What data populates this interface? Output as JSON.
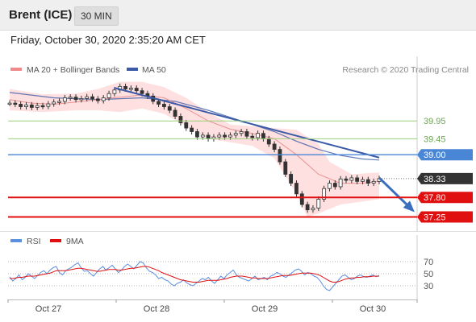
{
  "header": {
    "title": "Brent (ICE)",
    "timeframe": "30 MIN",
    "datetime": "Friday, October 30, 2020 2:35:20 AM CET"
  },
  "colors": {
    "price": "#333333",
    "ma20": "#e88a8a",
    "bollinger_fill": "#fdd6d6",
    "ma50": "#3a5aa8",
    "resistance_green": "#9bcf7e",
    "level_blue": "#4a86d6",
    "support_red": "#e01010",
    "current_price_box": "#333333",
    "rsi": "#5b8fe0",
    "rsi_ma": "#e01010"
  },
  "chart_data": [
    {
      "type": "line",
      "title": "Brent (ICE)",
      "legend": [
        {
          "name": "MA 20 + Bollinger Bands",
          "color": "#f08a8a"
        },
        {
          "name": "MA 50",
          "color": "#3a5aa8"
        }
      ],
      "legend_placement": "top-left",
      "source": "Research © 2020 Trading Central",
      "x_tick_labels": [
        "Oct 27",
        "Oct 28",
        "Oct 29",
        "Oct 30"
      ],
      "ylim": [
        36.9,
        41.2
      ],
      "price_path": [
        [
          0,
          40.45
        ],
        [
          1,
          40.42
        ],
        [
          2,
          40.35
        ],
        [
          3,
          40.4
        ],
        [
          4,
          40.33
        ],
        [
          5,
          40.38
        ],
        [
          6,
          40.36
        ],
        [
          7,
          40.43
        ],
        [
          8,
          40.48
        ],
        [
          9,
          40.5
        ],
        [
          10,
          40.6
        ],
        [
          11,
          40.62
        ],
        [
          12,
          40.55
        ],
        [
          13,
          40.58
        ],
        [
          14,
          40.63
        ],
        [
          15,
          40.57
        ],
        [
          16,
          40.52
        ],
        [
          17,
          40.6
        ],
        [
          18,
          40.72
        ],
        [
          19,
          40.82
        ],
        [
          20,
          40.92
        ],
        [
          21,
          40.85
        ],
        [
          22,
          40.87
        ],
        [
          23,
          40.8
        ],
        [
          24,
          40.72
        ],
        [
          25,
          40.65
        ],
        [
          26,
          40.5
        ],
        [
          27,
          40.42
        ],
        [
          28,
          40.35
        ],
        [
          29,
          40.25
        ],
        [
          30,
          40.08
        ],
        [
          31,
          39.9
        ],
        [
          32,
          39.75
        ],
        [
          33,
          39.65
        ],
        [
          34,
          39.5
        ],
        [
          35,
          39.55
        ],
        [
          36,
          39.45
        ],
        [
          37,
          39.5
        ],
        [
          38,
          39.55
        ],
        [
          39,
          39.5
        ],
        [
          40,
          39.55
        ],
        [
          41,
          39.6
        ],
        [
          42,
          39.65
        ],
        [
          43,
          39.52
        ],
        [
          44,
          39.48
        ],
        [
          45,
          39.6
        ],
        [
          46,
          39.45
        ],
        [
          47,
          39.3
        ],
        [
          48,
          39.15
        ],
        [
          49,
          38.8
        ],
        [
          50,
          38.45
        ],
        [
          51,
          38.2
        ],
        [
          52,
          37.9
        ],
        [
          53,
          37.6
        ],
        [
          54,
          37.45
        ],
        [
          55,
          37.5
        ],
        [
          56,
          37.75
        ],
        [
          57,
          38.05
        ],
        [
          58,
          38.2
        ],
        [
          59,
          38.1
        ],
        [
          60,
          38.32
        ],
        [
          61,
          38.28
        ],
        [
          62,
          38.35
        ],
        [
          63,
          38.25
        ],
        [
          64,
          38.3
        ],
        [
          65,
          38.2
        ],
        [
          66,
          38.25
        ],
        [
          67,
          38.33
        ]
      ],
      "ma20_path": [
        [
          0,
          40.55
        ],
        [
          4,
          40.45
        ],
        [
          8,
          40.42
        ],
        [
          12,
          40.48
        ],
        [
          16,
          40.55
        ],
        [
          20,
          40.62
        ],
        [
          24,
          40.68
        ],
        [
          28,
          40.6
        ],
        [
          32,
          40.3
        ],
        [
          36,
          39.95
        ],
        [
          40,
          39.72
        ],
        [
          44,
          39.6
        ],
        [
          48,
          39.45
        ],
        [
          52,
          39.0
        ],
        [
          56,
          38.45
        ],
        [
          60,
          38.2
        ],
        [
          64,
          38.2
        ],
        [
          67,
          38.25
        ]
      ],
      "bollinger_upper": [
        [
          0,
          40.85
        ],
        [
          6,
          40.7
        ],
        [
          12,
          40.72
        ],
        [
          16,
          40.85
        ],
        [
          20,
          41.05
        ],
        [
          24,
          41.05
        ],
        [
          28,
          40.9
        ],
        [
          32,
          40.6
        ],
        [
          36,
          40.2
        ],
        [
          40,
          39.85
        ],
        [
          44,
          39.8
        ],
        [
          48,
          39.75
        ],
        [
          52,
          39.7
        ],
        [
          56,
          39.3
        ],
        [
          58,
          38.8
        ],
        [
          62,
          38.45
        ],
        [
          67,
          38.5
        ]
      ],
      "bollinger_lower": [
        [
          0,
          40.25
        ],
        [
          6,
          40.2
        ],
        [
          12,
          40.25
        ],
        [
          16,
          40.25
        ],
        [
          20,
          40.2
        ],
        [
          24,
          40.3
        ],
        [
          28,
          40.15
        ],
        [
          32,
          39.8
        ],
        [
          36,
          39.45
        ],
        [
          40,
          39.35
        ],
        [
          44,
          39.25
        ],
        [
          48,
          38.9
        ],
        [
          52,
          37.9
        ],
        [
          54,
          37.25
        ],
        [
          56,
          37.35
        ],
        [
          60,
          37.6
        ],
        [
          67,
          37.75
        ]
      ],
      "ma50_path": [
        [
          0,
          40.75
        ],
        [
          8,
          40.6
        ],
        [
          16,
          40.55
        ],
        [
          24,
          40.6
        ],
        [
          30,
          40.5
        ],
        [
          36,
          40.25
        ],
        [
          42,
          39.95
        ],
        [
          48,
          39.65
        ],
        [
          52,
          39.38
        ],
        [
          56,
          39.15
        ],
        [
          60,
          38.98
        ],
        [
          64,
          38.88
        ],
        [
          67,
          38.85
        ]
      ],
      "trendline": {
        "from": [
          19,
          40.88
        ],
        "to": [
          67,
          38.92
        ]
      },
      "projection_arrow": {
        "from": [
          67,
          38.35
        ],
        "to": [
          73,
          37.45
        ]
      },
      "levels": [
        {
          "value": 39.95,
          "label": "39.95",
          "kind": "resistance"
        },
        {
          "value": 39.45,
          "label": "39.45",
          "kind": "resistance"
        },
        {
          "value": 39.0,
          "label": "39.00",
          "kind": "pivot"
        },
        {
          "value": 38.33,
          "label": "38.33",
          "kind": "current"
        },
        {
          "value": 37.8,
          "label": "37.80",
          "kind": "support"
        },
        {
          "value": 37.25,
          "label": "37.25",
          "kind": "support"
        }
      ]
    },
    {
      "type": "line",
      "title": "",
      "legend": [
        {
          "name": "RSI",
          "color": "#5b8fe0"
        },
        {
          "name": "9MA",
          "color": "#e01010"
        }
      ],
      "legend_placement": "top-left",
      "ylim": [
        10,
        90
      ],
      "y_ticks": [
        70,
        50,
        30
      ],
      "rsi_values": [
        45,
        38,
        42,
        48,
        40,
        44,
        50,
        46,
        42,
        47,
        52,
        55,
        50,
        56,
        60,
        62,
        52,
        48,
        55,
        58,
        61,
        65,
        68,
        60,
        54,
        55,
        50,
        46,
        52,
        58,
        62,
        56,
        60,
        64,
        58,
        52,
        56,
        62,
        66,
        62,
        58,
        64,
        70,
        68,
        60,
        54,
        52,
        48,
        42,
        44,
        40,
        38,
        33,
        30,
        34,
        36,
        40,
        35,
        32,
        30,
        34,
        38,
        42,
        40,
        44,
        38,
        34,
        40,
        46,
        42,
        48,
        52,
        56,
        48,
        44,
        42,
        40,
        38,
        42,
        46,
        40,
        42,
        44,
        40,
        46,
        48,
        52,
        50,
        46,
        44,
        48,
        52,
        56,
        58,
        54,
        48,
        52,
        50,
        46,
        44,
        38,
        30,
        24,
        22,
        28,
        34,
        40,
        46,
        48,
        44,
        40,
        42,
        46,
        48,
        45,
        44,
        46,
        48,
        45,
        47
      ],
      "rsi_ma_values": [
        42,
        42,
        43,
        44,
        44,
        45,
        46,
        46,
        46,
        47,
        48,
        49,
        50,
        51,
        53,
        55,
        55,
        55,
        55,
        56,
        57,
        58,
        59,
        59,
        58,
        57,
        56,
        55,
        54,
        54,
        55,
        56,
        57,
        57,
        57,
        56,
        56,
        57,
        58,
        59,
        59,
        60,
        61,
        62,
        62,
        61,
        59,
        57,
        55,
        52,
        50,
        48,
        46,
        44,
        42,
        40,
        39,
        38,
        37,
        36,
        36,
        36,
        37,
        38,
        39,
        39,
        39,
        39,
        40,
        41,
        42,
        44,
        45,
        46,
        46,
        46,
        45,
        44,
        43,
        43,
        42,
        42,
        42,
        42,
        43,
        44,
        45,
        46,
        47,
        47,
        47,
        48,
        49,
        50,
        51,
        51,
        51,
        51,
        50,
        49,
        47,
        44,
        41,
        38,
        36,
        36,
        37,
        39,
        41,
        42,
        43,
        43,
        44,
        44,
        45,
        45,
        45,
        46,
        46,
        46
      ]
    }
  ]
}
